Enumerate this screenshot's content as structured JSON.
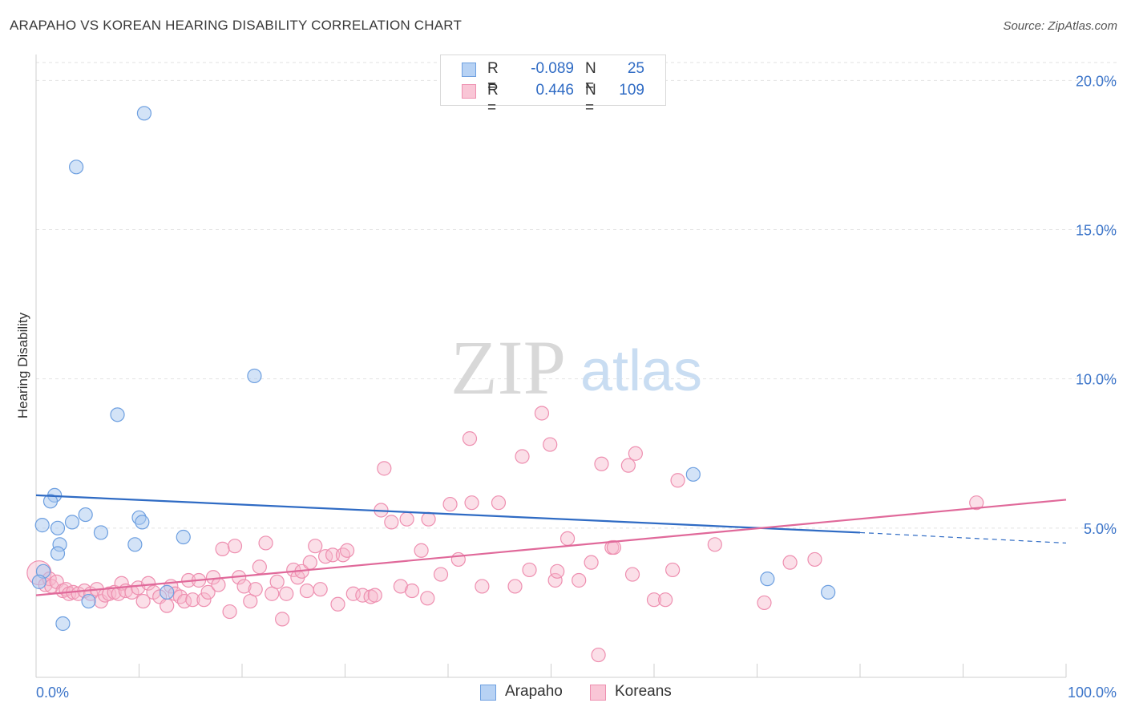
{
  "title": "ARAPAHO VS KOREAN HEARING DISABILITY CORRELATION CHART",
  "source": "Source: ZipAtlas.com",
  "watermark": {
    "zip": "ZIP",
    "atlas": "atlas"
  },
  "colors": {
    "blue": "#2f6bc4",
    "blue_fill": "#a8c8f0",
    "blue_stroke": "#6d9fe0",
    "pink": "#e0699a",
    "pink_fill": "#f7b9cc",
    "pink_stroke": "#ee8fb0",
    "axis_label_blue": "#3b74c9"
  },
  "legend": {
    "rows": [
      {
        "swatch": "blue",
        "r_label": "R =",
        "r_value": "-0.089",
        "n_label": "N =",
        "n_value": "25"
      },
      {
        "swatch": "pink",
        "r_label": "R =",
        "r_value": "0.446",
        "n_label": "N =",
        "n_value": "109"
      }
    ]
  },
  "bottom_legend": [
    {
      "swatch": "blue",
      "label": "Arapaho"
    },
    {
      "swatch": "pink",
      "label": "Koreans"
    }
  ],
  "chart_data": {
    "type": "scatter",
    "title": "ARAPAHO VS KOREAN HEARING DISABILITY CORRELATION CHART",
    "xlabel": "",
    "ylabel": "Hearing Disability",
    "xlim": [
      0,
      100
    ],
    "ylim": [
      0,
      20.6
    ],
    "x_tick_labels": [
      "0.0%",
      "100.0%"
    ],
    "y_ticks": [
      5,
      10,
      15,
      20
    ],
    "y_tick_labels": [
      "5.0%",
      "10.0%",
      "15.0%",
      "20.0%"
    ],
    "grid": true,
    "legend_position": "top-center",
    "series": [
      {
        "name": "Arapaho",
        "color": "blue",
        "r": -0.089,
        "n": 25,
        "trend": {
          "x0": 0,
          "y0": 6.1,
          "x1": 80,
          "y1": 4.85,
          "dashed_to_x": 100,
          "dashed_to_y": 4.5
        },
        "points": [
          [
            10.5,
            18.9
          ],
          [
            3.9,
            17.1
          ],
          [
            21.2,
            10.1
          ],
          [
            7.9,
            8.8
          ],
          [
            1.8,
            6.1
          ],
          [
            1.4,
            5.9
          ],
          [
            63.8,
            6.8
          ],
          [
            0.6,
            5.1
          ],
          [
            2.1,
            5.0
          ],
          [
            3.5,
            5.2
          ],
          [
            4.8,
            5.45
          ],
          [
            6.3,
            4.85
          ],
          [
            10.0,
            5.35
          ],
          [
            10.3,
            5.2
          ],
          [
            14.3,
            4.7
          ],
          [
            9.6,
            4.45
          ],
          [
            2.3,
            4.45
          ],
          [
            2.1,
            4.15
          ],
          [
            0.7,
            3.55
          ],
          [
            0.3,
            3.2
          ],
          [
            71.0,
            3.3
          ],
          [
            76.9,
            2.85
          ],
          [
            12.7,
            2.85
          ],
          [
            5.1,
            2.55
          ],
          [
            2.6,
            1.8
          ]
        ]
      },
      {
        "name": "Koreans",
        "color": "pink",
        "r": 0.446,
        "n": 109,
        "trend": {
          "x0": 0,
          "y0": 2.75,
          "x1": 100,
          "y1": 5.95
        },
        "points": [
          [
            0.3,
            3.5
          ],
          [
            0.9,
            3.1
          ],
          [
            1.3,
            3.3
          ],
          [
            1.5,
            3.05
          ],
          [
            2.0,
            3.2
          ],
          [
            2.6,
            2.9
          ],
          [
            2.9,
            2.95
          ],
          [
            3.2,
            2.8
          ],
          [
            3.6,
            2.85
          ],
          [
            4.1,
            2.8
          ],
          [
            4.7,
            2.9
          ],
          [
            5.3,
            2.8
          ],
          [
            5.9,
            2.95
          ],
          [
            6.3,
            2.55
          ],
          [
            6.7,
            2.75
          ],
          [
            7.1,
            2.8
          ],
          [
            7.6,
            2.85
          ],
          [
            8.0,
            2.8
          ],
          [
            8.3,
            3.15
          ],
          [
            8.7,
            2.9
          ],
          [
            9.3,
            2.85
          ],
          [
            9.9,
            3.0
          ],
          [
            10.4,
            2.55
          ],
          [
            10.9,
            3.15
          ],
          [
            11.4,
            2.85
          ],
          [
            12.0,
            2.7
          ],
          [
            12.7,
            2.4
          ],
          [
            13.1,
            3.05
          ],
          [
            13.5,
            2.8
          ],
          [
            14.0,
            2.7
          ],
          [
            14.4,
            2.55
          ],
          [
            14.8,
            3.25
          ],
          [
            15.2,
            2.6
          ],
          [
            15.8,
            3.25
          ],
          [
            16.3,
            2.6
          ],
          [
            16.7,
            2.85
          ],
          [
            17.2,
            3.35
          ],
          [
            17.7,
            3.1
          ],
          [
            18.1,
            4.3
          ],
          [
            18.8,
            2.2
          ],
          [
            19.3,
            4.4
          ],
          [
            19.7,
            3.35
          ],
          [
            20.2,
            3.05
          ],
          [
            20.8,
            2.55
          ],
          [
            21.3,
            2.95
          ],
          [
            21.7,
            3.7
          ],
          [
            22.3,
            4.5
          ],
          [
            22.9,
            2.8
          ],
          [
            23.4,
            3.2
          ],
          [
            23.9,
            1.95
          ],
          [
            24.3,
            2.8
          ],
          [
            25.0,
            3.6
          ],
          [
            25.4,
            3.35
          ],
          [
            25.8,
            3.55
          ],
          [
            26.3,
            2.9
          ],
          [
            26.6,
            3.85
          ],
          [
            27.1,
            4.4
          ],
          [
            27.6,
            2.95
          ],
          [
            28.1,
            4.05
          ],
          [
            28.8,
            4.1
          ],
          [
            29.3,
            2.45
          ],
          [
            29.8,
            4.1
          ],
          [
            30.2,
            4.25
          ],
          [
            30.8,
            2.8
          ],
          [
            31.7,
            2.75
          ],
          [
            32.5,
            2.7
          ],
          [
            32.9,
            2.75
          ],
          [
            33.5,
            5.6
          ],
          [
            33.8,
            7.0
          ],
          [
            34.5,
            5.2
          ],
          [
            35.4,
            3.05
          ],
          [
            36.0,
            5.3
          ],
          [
            36.5,
            2.9
          ],
          [
            37.4,
            4.25
          ],
          [
            38.1,
            5.3
          ],
          [
            38.0,
            2.65
          ],
          [
            39.3,
            3.45
          ],
          [
            40.2,
            5.8
          ],
          [
            41.0,
            3.95
          ],
          [
            42.1,
            8.0
          ],
          [
            42.3,
            5.85
          ],
          [
            43.3,
            3.05
          ],
          [
            44.9,
            5.85
          ],
          [
            46.5,
            3.05
          ],
          [
            47.2,
            7.4
          ],
          [
            47.9,
            3.6
          ],
          [
            49.1,
            8.85
          ],
          [
            49.9,
            7.8
          ],
          [
            50.4,
            3.25
          ],
          [
            50.6,
            3.55
          ],
          [
            51.6,
            4.65
          ],
          [
            52.7,
            3.25
          ],
          [
            53.9,
            3.85
          ],
          [
            54.6,
            0.75
          ],
          [
            54.9,
            7.15
          ],
          [
            55.9,
            4.35
          ],
          [
            56.1,
            4.35
          ],
          [
            57.5,
            7.1
          ],
          [
            57.9,
            3.45
          ],
          [
            58.2,
            7.5
          ],
          [
            60.0,
            2.6
          ],
          [
            61.1,
            2.6
          ],
          [
            61.8,
            3.6
          ],
          [
            62.3,
            6.6
          ],
          [
            65.9,
            4.45
          ],
          [
            70.7,
            2.5
          ],
          [
            73.2,
            3.85
          ],
          [
            75.6,
            3.95
          ],
          [
            91.3,
            5.85
          ]
        ]
      }
    ]
  }
}
